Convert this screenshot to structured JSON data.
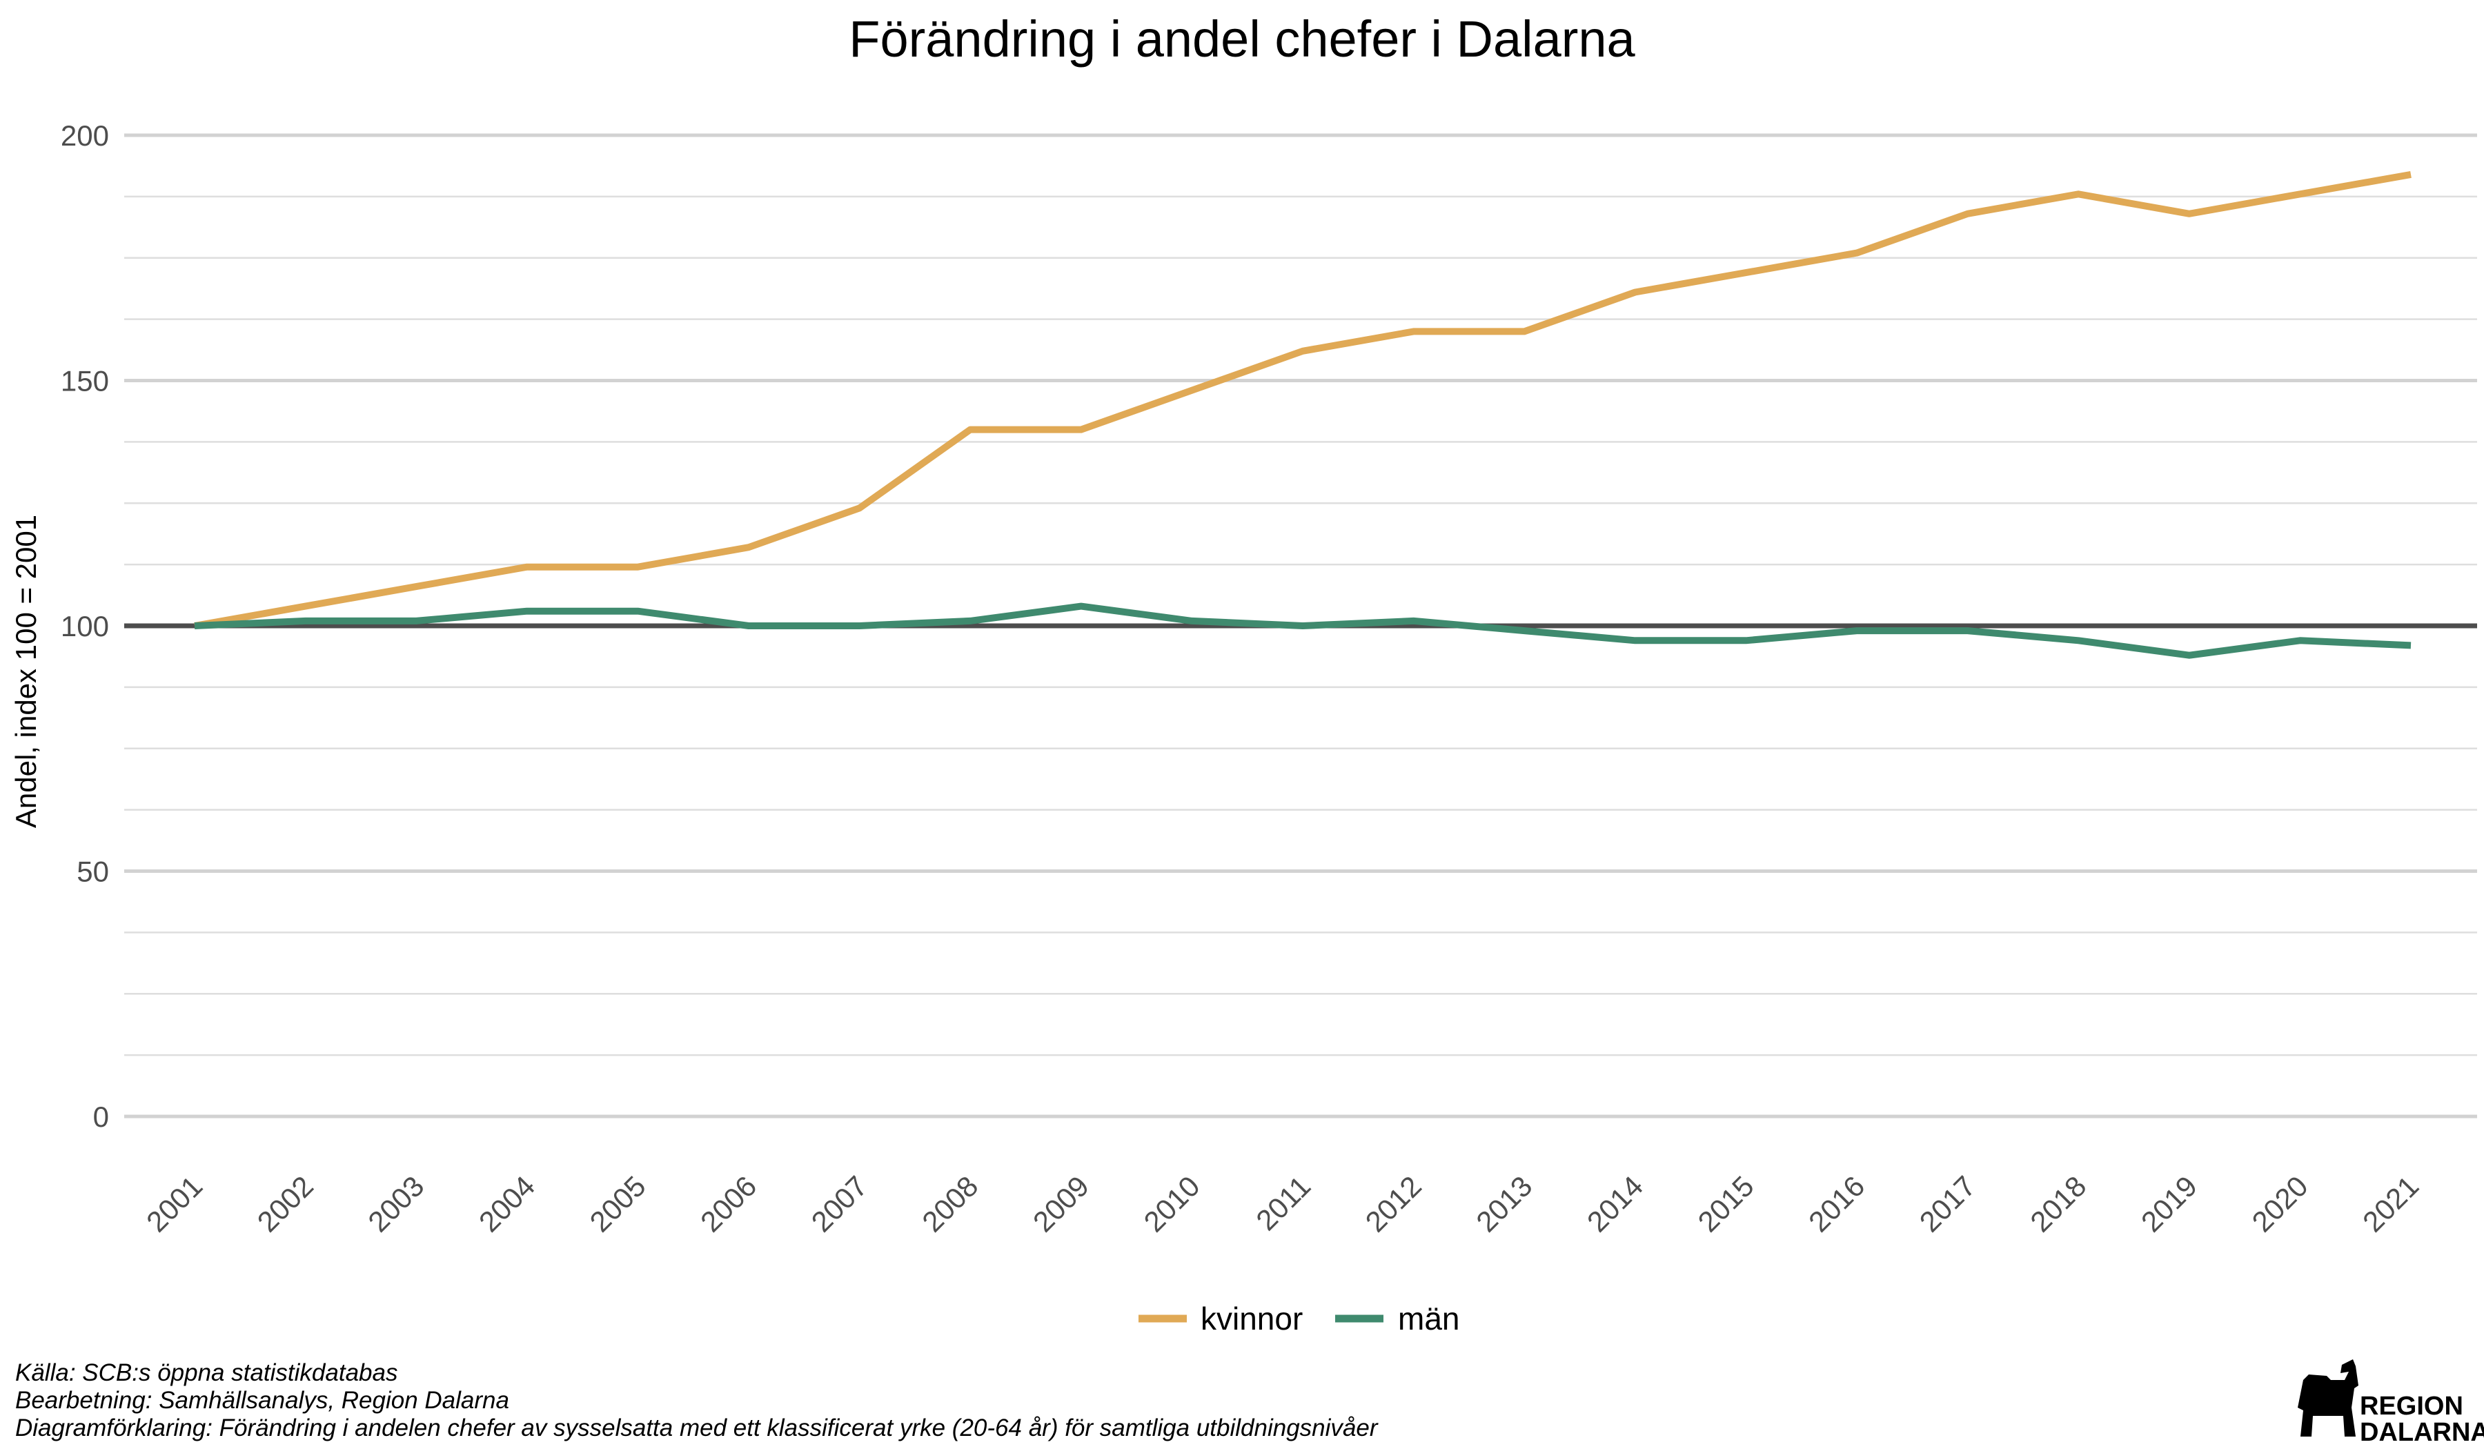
{
  "chart_data": {
    "type": "line",
    "title": "Förändring i andel chefer i Dalarna",
    "ylabel": "Andel, index 100 = 2001",
    "xlabel": "",
    "ylim": [
      0,
      200
    ],
    "y_ticks": [
      "0",
      "50",
      "100",
      "150",
      "200"
    ],
    "reference_line": 100,
    "grid": true,
    "legend_position": "bottom",
    "categories": [
      "2001",
      "2002",
      "2003",
      "2004",
      "2005",
      "2006",
      "2007",
      "2008",
      "2009",
      "2010",
      "2011",
      "2012",
      "2013",
      "2014",
      "2015",
      "2016",
      "2017",
      "2018",
      "2019",
      "2020",
      "2021"
    ],
    "series": [
      {
        "name": "kvinnor",
        "color": "#e0a955",
        "values": [
          100,
          104,
          108,
          112,
          112,
          116,
          124,
          140,
          140,
          148,
          156,
          160,
          160,
          168,
          172,
          176,
          184,
          188,
          184,
          188,
          192
        ]
      },
      {
        "name": "män",
        "color": "#3f8a6e",
        "values": [
          100,
          101,
          101,
          103,
          103,
          100,
          100,
          101,
          104,
          101,
          100,
          101,
          99,
          97,
          97,
          99,
          99,
          97,
          94,
          97,
          96
        ]
      }
    ]
  },
  "caption": {
    "source": "Källa: SCB:s öppna statistikdatabas",
    "processing": "Bearbetning: Samhällsanalys, Region Dalarna",
    "explanation": "Diagramförklaring: Förändring i andelen chefer av sysselsatta med ett klassificerat yrke (20-64 år) för samtliga utbildningsnivåer"
  },
  "logo": {
    "line1": "REGION",
    "line2": "DALARNA"
  },
  "colors": {
    "grid": "#d9d9d9",
    "reference_line": "#4d4d4d",
    "kvinnor": "#e0a955",
    "man": "#3f8a6e"
  }
}
